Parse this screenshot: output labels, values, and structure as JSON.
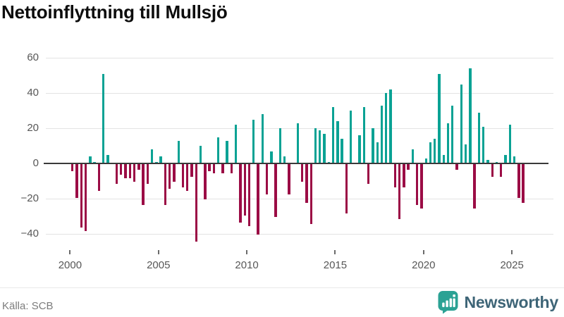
{
  "title": "Nettoinflyttning till Mullsjö",
  "source": "Källa: SCB",
  "brand": {
    "name": "Newsworthy",
    "icon": "newsworthy-speech-bubble-bar-chart-icon",
    "icon_color": "#2ba294",
    "text_color": "#3e6577"
  },
  "chart_data": {
    "type": "bar",
    "title": "Nettoinflyttning till Mullsjö",
    "xlabel": "",
    "ylabel": "",
    "frequency": "quarterly",
    "start_year": 2000,
    "start_quarter": 1,
    "values": [
      -4,
      -19,
      -36,
      -38,
      4,
      1,
      -15,
      51,
      5,
      0,
      -11,
      -6,
      -8,
      -8,
      -10,
      -3,
      -23,
      -11,
      8,
      1,
      4,
      -23,
      -14,
      -10,
      13,
      -13,
      -15,
      -7,
      -44,
      10,
      -20,
      -4,
      -5,
      15,
      -5,
      13,
      -5,
      22,
      -33,
      -29,
      -35,
      25,
      -40,
      28,
      -17,
      7,
      -30,
      20,
      4,
      -17,
      0,
      23,
      -10,
      -22,
      -34,
      20,
      19,
      17,
      1,
      32,
      24,
      14,
      -28,
      30,
      0,
      16,
      32,
      -11,
      20,
      12,
      33,
      40,
      42,
      -13,
      -31,
      -13,
      -3,
      8,
      -23,
      -25,
      3,
      12,
      14,
      51,
      5,
      23,
      33,
      -3,
      45,
      11,
      54,
      -25,
      29,
      21,
      2,
      -7,
      1,
      -7,
      5,
      22,
      4,
      -19,
      -22
    ],
    "x_tick_labels": [
      "2000",
      "2005",
      "2010",
      "2015",
      "2020",
      "2025"
    ],
    "y_ticks": [
      60,
      40,
      20,
      0,
      -20,
      -40
    ],
    "ylim": [
      -50,
      62
    ],
    "grid": "horizontal",
    "legend": "none",
    "colors": {
      "positive": "#0aa294",
      "negative": "#9b0c45"
    }
  }
}
